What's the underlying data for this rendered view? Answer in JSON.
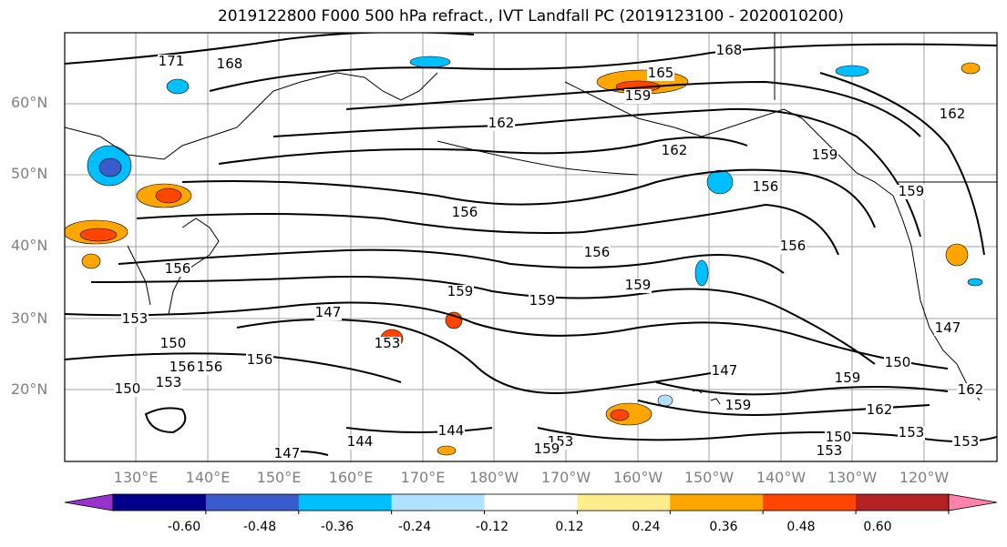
{
  "title": "2019122800 F000 500 hPa refract., IVT Landfall PC (2019123100 - 2020010200)",
  "axes": {
    "lat_labels": [
      "60°N",
      "50°N",
      "40°N",
      "30°N",
      "20°N"
    ],
    "lon_labels": [
      "130°E",
      "140°E",
      "150°E",
      "160°E",
      "170°E",
      "180°W",
      "170°W",
      "160°W",
      "150°W",
      "140°W",
      "130°W",
      "120°W"
    ]
  },
  "colorbar": {
    "colors": [
      "#9932cc",
      "#00008b",
      "#3a5bcc",
      "#00bfff",
      "#b0e2ff",
      "#ffffff",
      "#ffec8b",
      "#ffa500",
      "#ff4500",
      "#b22222",
      "#ff82ab"
    ],
    "tick_labels": [
      "-0.60",
      "-0.48",
      "-0.36",
      "-0.24",
      "-0.12",
      "0.12",
      "0.24",
      "0.36",
      "0.48",
      "0.60"
    ]
  },
  "contour_labels": [
    "171",
    "168",
    "168",
    "165",
    "162",
    "162",
    "162",
    "159",
    "159",
    "156",
    "156",
    "156",
    "156",
    "159",
    "159",
    "153",
    "156",
    "147",
    "150",
    "153",
    "159",
    "159",
    "156",
    "150",
    "159",
    "147",
    "150",
    "153",
    "147",
    "144",
    "144",
    "147",
    "153",
    "159",
    "162",
    "153",
    "162",
    "159",
    "150",
    "153",
    "153",
    "156",
    "156"
  ]
}
